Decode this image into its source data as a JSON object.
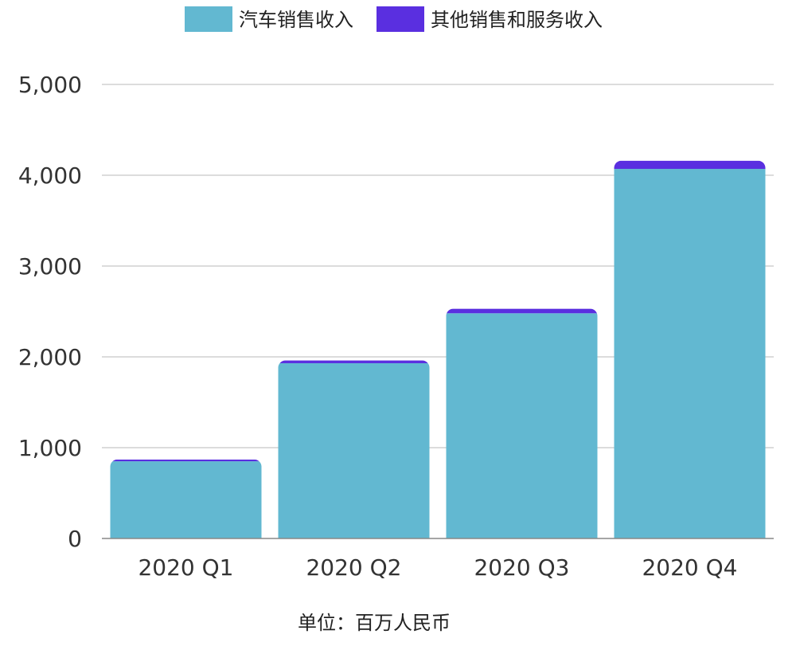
{
  "chart_data": {
    "type": "bar",
    "stacked": true,
    "categories": [
      "2020 Q1",
      "2020 Q2",
      "2020 Q3",
      "2020 Q4"
    ],
    "series": [
      {
        "name": "汽车销售收入",
        "values": [
          850,
          1930,
          2480,
          4070
        ],
        "color": "#62b8d1"
      },
      {
        "name": "其他销售和服务收入",
        "values": [
          20,
          30,
          50,
          90
        ],
        "color": "#5a2fe0"
      }
    ],
    "yticks": [
      "0",
      "1,000",
      "2,000",
      "3,000",
      "4,000",
      "5,000"
    ],
    "ylim": [
      0,
      5000
    ],
    "grid": true,
    "legend_position": "top-center",
    "unit_label": "单位：百万人民币"
  }
}
